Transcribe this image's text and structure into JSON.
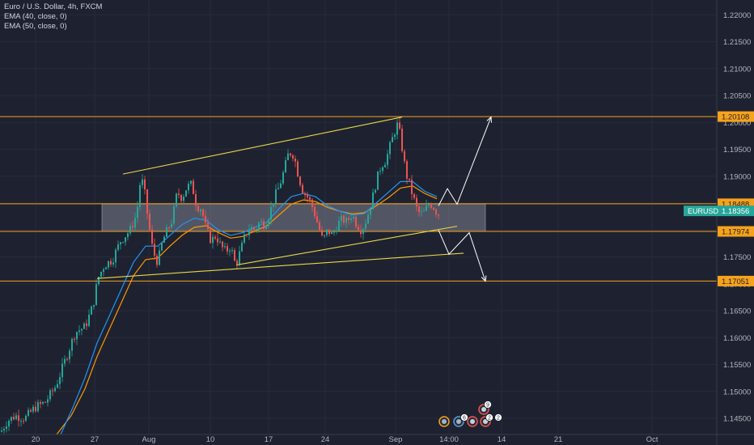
{
  "legend": {
    "title": "Euro / U.S. Dollar, 4h, FXCM",
    "ema40": "EMA (40, close, 0)",
    "ema50": "EMA (50, close, 0)"
  },
  "colors": {
    "background": "#1e2230",
    "up_candle": "#26a69a",
    "down_candle": "#ef5350",
    "ema40": "#2196f3",
    "ema50": "#ff9800",
    "level_line": "#f7a21b",
    "trend_line": "#e8d84a",
    "projection": "#ffffff",
    "price_label": "#f7a21b",
    "symbol_label": "#26a69a"
  },
  "chart_data": {
    "type": "candlestick",
    "symbol": "EURUSD",
    "timeframe": "4h",
    "ylim": [
      1.142,
      1.222
    ],
    "y_ticks": [
      "1.22000",
      "1.21500",
      "1.21000",
      "1.20500",
      "1.20000",
      "1.19500",
      "1.19000",
      "1.18500",
      "1.18000",
      "1.17500",
      "1.17000",
      "1.16500",
      "1.16000",
      "1.15500",
      "1.15000",
      "1.14500"
    ],
    "x_ticks": [
      "20",
      "27",
      "Aug",
      "10",
      "17",
      "24",
      "Sep",
      "14:00",
      "14",
      "21",
      "Oct"
    ],
    "horizontal_levels": [
      {
        "price": 1.20108,
        "label": "1.20108"
      },
      {
        "price": 1.18488,
        "label": "1.18488"
      },
      {
        "price": 1.17974,
        "label": "1.17974"
      },
      {
        "price": 1.17051,
        "label": "1.17051"
      }
    ],
    "current_price": {
      "symbol": "EURUSD",
      "price": 1.18356,
      "label": "1.18356"
    },
    "zone": {
      "top": 1.18488,
      "bottom": 1.17974
    },
    "close_path": [
      [
        0,
        1.1425
      ],
      [
        8,
        1.1445
      ],
      [
        18,
        1.1455
      ],
      [
        30,
        1.145
      ],
      [
        42,
        1.147
      ],
      [
        55,
        1.148
      ],
      [
        68,
        1.151
      ],
      [
        80,
        1.156
      ],
      [
        92,
        1.161
      ],
      [
        104,
        1.162
      ],
      [
        114,
        1.166
      ],
      [
        120,
        1.171
      ],
      [
        128,
        1.1735
      ],
      [
        138,
        1.1745
      ],
      [
        148,
        1.178
      ],
      [
        160,
        1.18
      ],
      [
        168,
        1.183
      ],
      [
        172,
        1.1885
      ],
      [
        176,
        1.189
      ],
      [
        182,
        1.182
      ],
      [
        188,
        1.176
      ],
      [
        194,
        1.174
      ],
      [
        200,
        1.178
      ],
      [
        206,
        1.18
      ],
      [
        212,
        1.182
      ],
      [
        218,
        1.187
      ],
      [
        224,
        1.186
      ],
      [
        230,
        1.188
      ],
      [
        236,
        1.1885
      ],
      [
        242,
        1.1845
      ],
      [
        248,
        1.184
      ],
      [
        254,
        1.18
      ],
      [
        260,
        1.178
      ],
      [
        266,
        1.179
      ],
      [
        272,
        1.177
      ],
      [
        278,
        1.176
      ],
      [
        284,
        1.177
      ],
      [
        290,
        1.1735
      ],
      [
        296,
        1.176
      ],
      [
        302,
        1.179
      ],
      [
        308,
        1.1805
      ],
      [
        314,
        1.18
      ],
      [
        320,
        1.1815
      ],
      [
        326,
        1.181
      ],
      [
        332,
        1.183
      ],
      [
        338,
        1.186
      ],
      [
        344,
        1.188
      ],
      [
        350,
        1.191
      ],
      [
        356,
        1.1945
      ],
      [
        362,
        1.194
      ],
      [
        368,
        1.19
      ],
      [
        374,
        1.187
      ],
      [
        380,
        1.186
      ],
      [
        386,
        1.184
      ],
      [
        392,
        1.181
      ],
      [
        398,
        1.178
      ],
      [
        404,
        1.18
      ],
      [
        410,
        1.179
      ],
      [
        416,
        1.181
      ],
      [
        422,
        1.182
      ],
      [
        428,
        1.1815
      ],
      [
        434,
        1.183
      ],
      [
        440,
        1.181
      ],
      [
        446,
        1.18
      ],
      [
        452,
        1.182
      ],
      [
        458,
        1.185
      ],
      [
        464,
        1.189
      ],
      [
        470,
        1.192
      ],
      [
        476,
        1.193
      ],
      [
        482,
        1.196
      ],
      [
        486,
        1.198
      ],
      [
        490,
        1.1995
      ],
      [
        494,
        1.1975
      ],
      [
        498,
        1.193
      ],
      [
        502,
        1.19
      ],
      [
        506,
        1.188
      ],
      [
        510,
        1.186
      ],
      [
        514,
        1.184
      ],
      [
        518,
        1.183
      ],
      [
        522,
        1.183
      ],
      [
        526,
        1.184
      ],
      [
        530,
        1.185
      ],
      [
        534,
        1.1845
      ],
      [
        538,
        1.1835
      ],
      [
        541,
        1.183
      ]
    ],
    "ema40_path": [
      [
        75,
        1.142
      ],
      [
        90,
        1.147
      ],
      [
        105,
        1.1525
      ],
      [
        120,
        1.159
      ],
      [
        135,
        1.164
      ],
      [
        150,
        1.169
      ],
      [
        165,
        1.174
      ],
      [
        180,
        1.177
      ],
      [
        195,
        1.177
      ],
      [
        210,
        1.179
      ],
      [
        225,
        1.181
      ],
      [
        240,
        1.1822
      ],
      [
        255,
        1.1818
      ],
      [
        270,
        1.18
      ],
      [
        285,
        1.179
      ],
      [
        300,
        1.1795
      ],
      [
        315,
        1.1805
      ],
      [
        330,
        1.1815
      ],
      [
        345,
        1.184
      ],
      [
        360,
        1.1862
      ],
      [
        375,
        1.1868
      ],
      [
        390,
        1.1862
      ],
      [
        405,
        1.1845
      ],
      [
        420,
        1.1835
      ],
      [
        435,
        1.1828
      ],
      [
        450,
        1.183
      ],
      [
        465,
        1.185
      ],
      [
        480,
        1.187
      ],
      [
        495,
        1.189
      ],
      [
        510,
        1.189
      ],
      [
        525,
        1.1872
      ],
      [
        540,
        1.1862
      ]
    ],
    "ema50_path": [
      [
        70,
        1.142
      ],
      [
        88,
        1.1455
      ],
      [
        105,
        1.1505
      ],
      [
        120,
        1.1565
      ],
      [
        135,
        1.1615
      ],
      [
        150,
        1.1665
      ],
      [
        165,
        1.1715
      ],
      [
        180,
        1.1745
      ],
      [
        195,
        1.1748
      ],
      [
        210,
        1.177
      ],
      [
        225,
        1.179
      ],
      [
        240,
        1.1805
      ],
      [
        255,
        1.1808
      ],
      [
        270,
        1.1795
      ],
      [
        285,
        1.1785
      ],
      [
        300,
        1.1788
      ],
      [
        315,
        1.1798
      ],
      [
        330,
        1.1808
      ],
      [
        345,
        1.1828
      ],
      [
        360,
        1.1848
      ],
      [
        375,
        1.1856
      ],
      [
        390,
        1.1853
      ],
      [
        405,
        1.1842
      ],
      [
        420,
        1.1835
      ],
      [
        435,
        1.183
      ],
      [
        450,
        1.1832
      ],
      [
        465,
        1.1845
      ],
      [
        480,
        1.186
      ],
      [
        495,
        1.1878
      ],
      [
        510,
        1.1882
      ],
      [
        525,
        1.1868
      ],
      [
        540,
        1.1858
      ]
    ],
    "channel_lines": [
      {
        "from": [
          152,
          1.1904
        ],
        "to": [
          497,
          1.201
        ]
      },
      {
        "from": [
          120,
          1.171
        ],
        "to": [
          573,
          1.1757
        ]
      },
      {
        "from": [
          292,
          1.1735
        ],
        "to": [
          565,
          1.1807
        ]
      }
    ],
    "projection_arrows": [
      {
        "points": [
          [
            542,
            1.1845
          ],
          [
            553,
            1.1877
          ],
          [
            565,
            1.1848
          ],
          [
            607,
            1.201
          ]
        ]
      },
      {
        "points": [
          [
            542,
            1.18
          ],
          [
            555,
            1.1755
          ],
          [
            580,
            1.1795
          ],
          [
            600,
            1.1705
          ]
        ]
      }
    ],
    "event_icons": [
      "calendar-event-icon",
      "calendar-event-icon",
      "flag-event-icon",
      "flag-event-icon",
      "flag-event-icon"
    ],
    "event_badges": [
      "6",
      "2",
      "2",
      "9"
    ]
  }
}
